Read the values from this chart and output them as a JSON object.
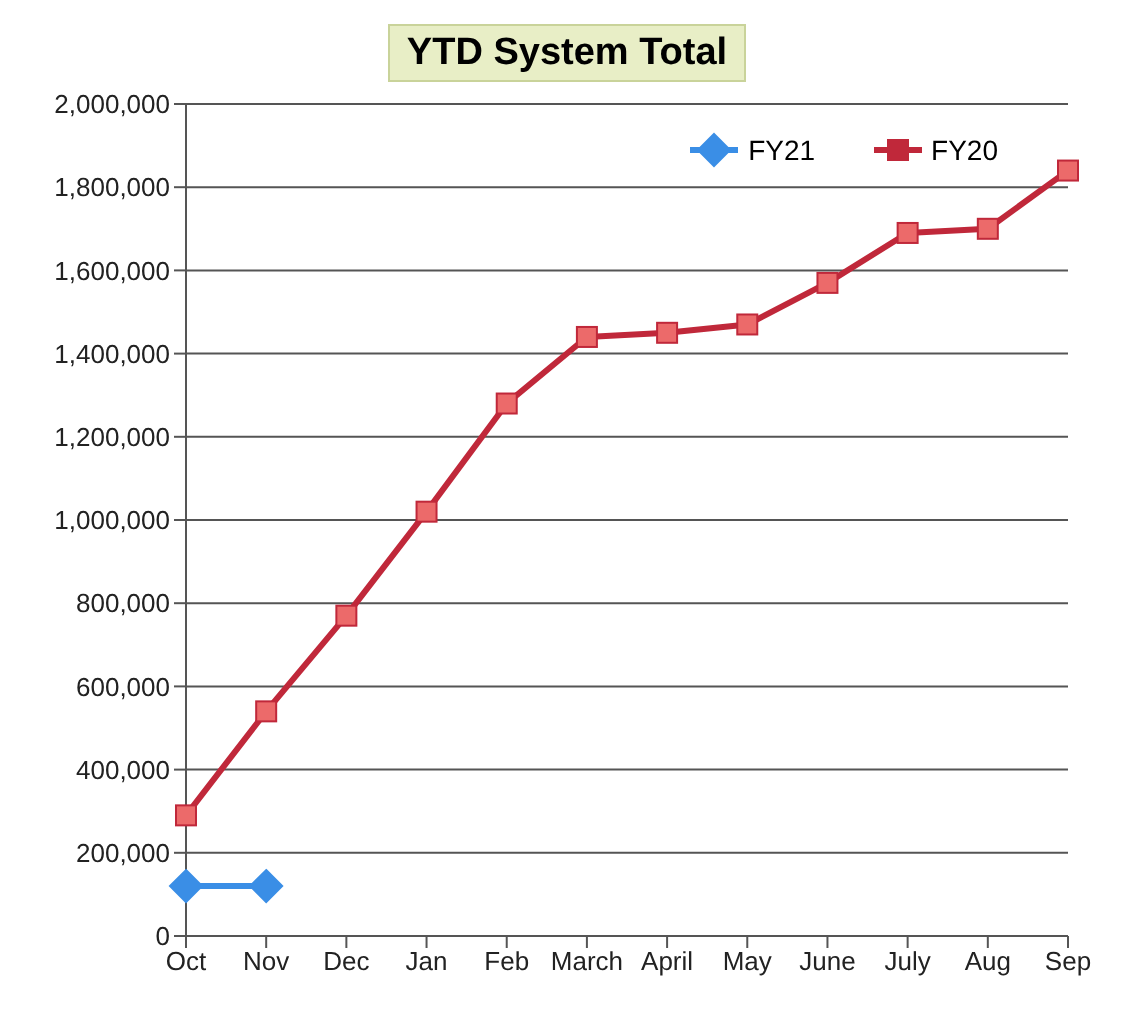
{
  "chart_data": {
    "type": "line",
    "title": "YTD System Total",
    "categories": [
      "Oct",
      "Nov",
      "Dec",
      "Jan",
      "Feb",
      "March",
      "April",
      "May",
      "June",
      "July",
      "Aug",
      "Sep"
    ],
    "series": [
      {
        "name": "FY21",
        "color": "#3a8ee6",
        "marker": "diamond",
        "values": [
          120000,
          120000,
          null,
          null,
          null,
          null,
          null,
          null,
          null,
          null,
          null,
          null
        ]
      },
      {
        "name": "FY20",
        "color": "#c0283a",
        "marker": "square",
        "values": [
          290000,
          540000,
          770000,
          1020000,
          1280000,
          1440000,
          1450000,
          1470000,
          1570000,
          1690000,
          1700000,
          1840000
        ]
      }
    ],
    "ylim": [
      0,
      2000000
    ],
    "yticks": [
      0,
      {
        "value": 200000,
        "label": "200,000"
      },
      {
        "value": 400000,
        "label": "400,000"
      },
      {
        "value": 600000,
        "label": "600,000"
      },
      {
        "value": 800000,
        "label": "800,000"
      },
      {
        "value": 1000000,
        "label": "1,000,000"
      },
      {
        "value": 1200000,
        "label": "1,200,000"
      },
      {
        "value": 1400000,
        "label": "1,400,000"
      },
      {
        "value": 1600000,
        "label": "1,600,000"
      },
      {
        "value": 1800000,
        "label": "1,800,000"
      },
      {
        "value": 2000000,
        "label": "2,000,000"
      }
    ],
    "grid": "y",
    "legend": "top right"
  }
}
